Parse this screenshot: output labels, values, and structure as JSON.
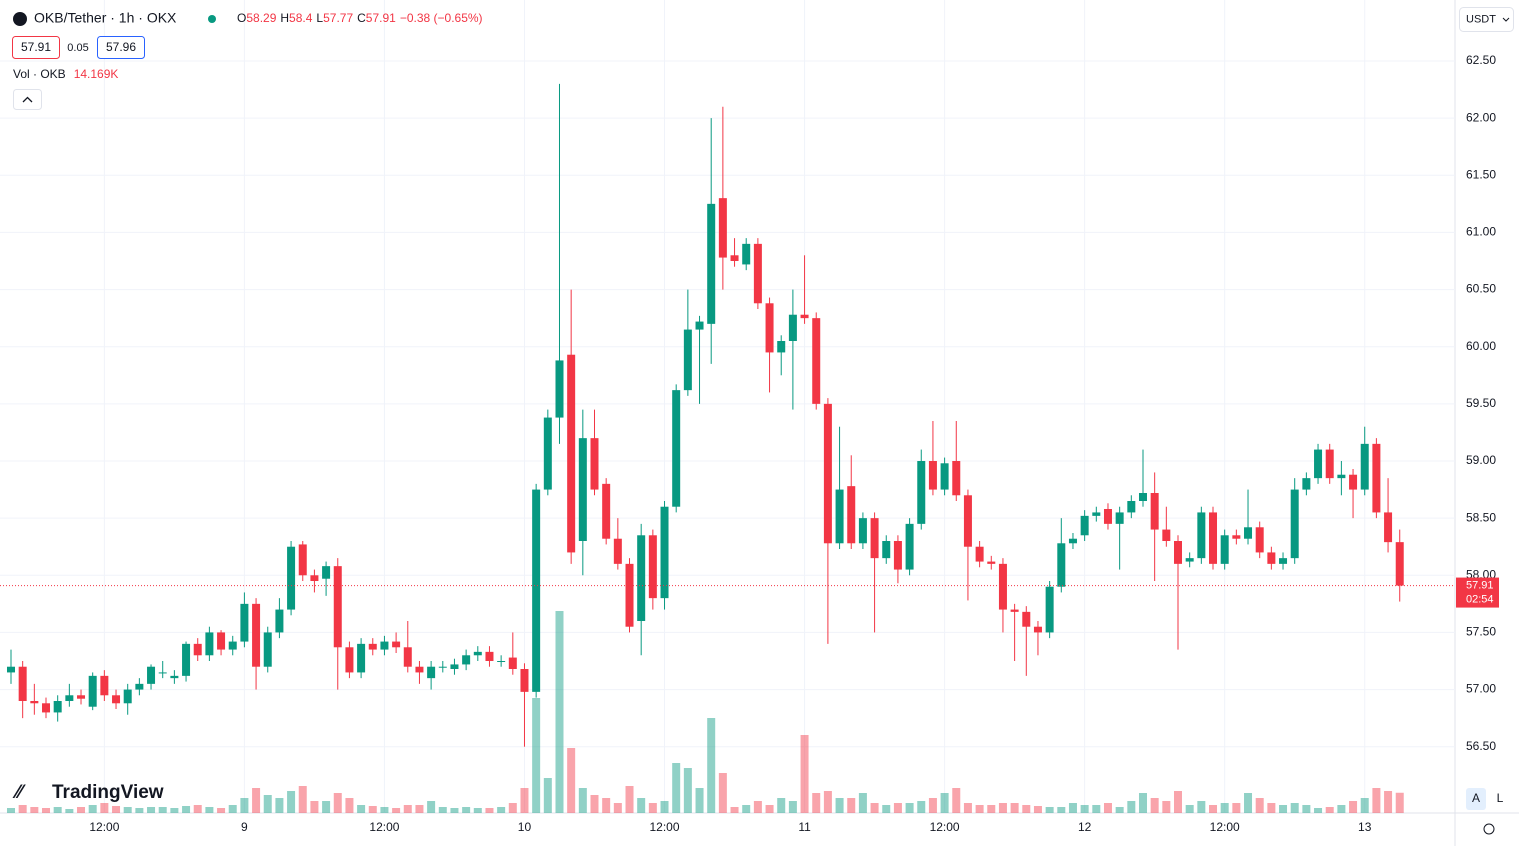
{
  "header": {
    "symbol": "OKB/Tether · 1h · OKX",
    "o": "O",
    "h": "H",
    "l": "L",
    "c": "C",
    "change_label": "−0.38 (−0.65%)",
    "sell": 57.91,
    "spread": 0.05,
    "buy": 57.96,
    "vol_label": "Vol · OKB",
    "vol_value": "14.169K",
    "currency": "USDT",
    "countdown": "02:54",
    "brand": "TradingView",
    "auto": "A",
    "log": "L"
  },
  "chart_data": {
    "type": "candlestick",
    "up_color": "#089981",
    "down_color": "#f23645",
    "grid": true,
    "ylim": [
      55.92,
      62.99
    ],
    "yticks": [
      {
        "value": 56.5,
        "label": "56.50"
      },
      {
        "value": 57,
        "label": "57.00"
      },
      {
        "value": 57.5,
        "label": "57.50"
      },
      {
        "value": 58,
        "label": "58.00"
      },
      {
        "value": 58.5,
        "label": "58.50"
      },
      {
        "value": 59,
        "label": "59.00"
      },
      {
        "value": 59.5,
        "label": "59.50"
      },
      {
        "value": 60,
        "label": "60.00"
      },
      {
        "value": 60.5,
        "label": "60.50"
      },
      {
        "value": 61,
        "label": "61.00"
      },
      {
        "value": 61.5,
        "label": "61.50"
      },
      {
        "value": 62,
        "label": "62.00"
      },
      {
        "value": 62.5,
        "label": "62.50"
      }
    ],
    "xticks": [
      {
        "value": 8,
        "label": "12:00"
      },
      {
        "value": 20,
        "label": "9"
      },
      {
        "value": 32,
        "label": "12:00"
      },
      {
        "value": 44,
        "label": "10"
      },
      {
        "value": 56,
        "label": "12:00"
      },
      {
        "value": 68,
        "label": "11"
      },
      {
        "value": 80,
        "label": "12:00"
      },
      {
        "value": 92,
        "label": "12"
      },
      {
        "value": 104,
        "label": "12:00"
      },
      {
        "value": 116,
        "label": "13"
      }
    ],
    "open": [
      57.15,
      57.2,
      56.9,
      56.88,
      56.8,
      56.9,
      56.95,
      56.85,
      57.12,
      56.95,
      56.88,
      57.0,
      57.05,
      57.15,
      57.1,
      57.12,
      57.4,
      57.3,
      57.5,
      57.35,
      57.42,
      57.75,
      57.2,
      57.5,
      57.7,
      58.27,
      58.0,
      57.97,
      58.08,
      57.37,
      57.15,
      57.4,
      57.35,
      57.42,
      57.37,
      57.2,
      57.1,
      57.2,
      57.18,
      57.22,
      57.3,
      57.33,
      57.25,
      57.28,
      57.18,
      56.98,
      58.75,
      59.38,
      59.93,
      58.3,
      59.2,
      58.8,
      58.32,
      58.1,
      57.6,
      58.35,
      57.8,
      58.6,
      59.62,
      60.15,
      60.2,
      61.3,
      60.8,
      60.72,
      60.9,
      60.38,
      59.95,
      60.05,
      60.28,
      60.25,
      59.5,
      58.28,
      58.78,
      58.28,
      58.5,
      58.15,
      58.3,
      58.05,
      58.45,
      59.0,
      58.75,
      59.0,
      58.7,
      58.25,
      58.12,
      58.1,
      57.7,
      57.68,
      57.55,
      57.5,
      57.9,
      58.28,
      58.35,
      58.52,
      58.58,
      58.45,
      58.55,
      58.65,
      58.72,
      58.4,
      58.3,
      58.12,
      58.15,
      58.55,
      58.1,
      58.35,
      58.32,
      58.42,
      58.2,
      58.1,
      58.15,
      58.75,
      58.85,
      59.1,
      58.85,
      58.88,
      58.75,
      59.15,
      58.55,
      58.29
    ],
    "high": [
      57.35,
      57.25,
      57.05,
      56.93,
      56.95,
      57.05,
      57.0,
      57.15,
      57.17,
      57.0,
      57.05,
      57.1,
      57.22,
      57.25,
      57.17,
      57.42,
      57.45,
      57.55,
      57.52,
      57.47,
      57.85,
      57.8,
      57.55,
      57.8,
      58.3,
      58.3,
      58.05,
      58.12,
      58.15,
      57.42,
      57.45,
      57.45,
      57.47,
      57.5,
      57.6,
      57.25,
      57.25,
      57.25,
      57.27,
      57.35,
      57.38,
      57.38,
      57.3,
      57.5,
      57.23,
      58.8,
      59.45,
      62.3,
      60.5,
      59.45,
      59.45,
      58.85,
      58.5,
      58.15,
      58.45,
      58.4,
      58.65,
      59.67,
      60.5,
      60.27,
      62.0,
      62.1,
      60.95,
      60.95,
      60.95,
      60.43,
      60.1,
      60.5,
      60.8,
      60.3,
      59.55,
      59.3,
      59.05,
      58.55,
      58.55,
      58.35,
      58.35,
      58.5,
      59.1,
      59.35,
      59.03,
      59.35,
      58.75,
      58.3,
      58.17,
      58.15,
      57.75,
      57.73,
      57.6,
      57.95,
      58.5,
      58.37,
      58.57,
      58.6,
      58.63,
      58.6,
      58.7,
      59.1,
      58.9,
      58.6,
      58.35,
      58.2,
      58.6,
      58.6,
      58.4,
      58.4,
      58.75,
      58.47,
      58.25,
      58.2,
      58.85,
      58.9,
      59.15,
      59.15,
      59.0,
      58.93,
      59.3,
      59.2,
      58.85,
      58.4
    ],
    "low": [
      57.05,
      56.75,
      56.78,
      56.75,
      56.72,
      56.85,
      56.87,
      56.82,
      56.9,
      56.83,
      56.78,
      56.95,
      57.0,
      57.1,
      57.05,
      57.07,
      57.25,
      57.25,
      57.3,
      57.3,
      57.37,
      57.0,
      57.15,
      57.45,
      57.65,
      57.95,
      57.85,
      57.82,
      57.0,
      57.1,
      57.1,
      57.3,
      57.3,
      57.32,
      57.15,
      57.05,
      57.0,
      57.15,
      57.13,
      57.17,
      57.25,
      57.2,
      57.2,
      57.13,
      56.5,
      56.93,
      58.7,
      59.15,
      58.1,
      58.0,
      58.7,
      58.27,
      58.05,
      57.5,
      57.3,
      57.7,
      57.7,
      58.55,
      59.57,
      59.5,
      59.85,
      60.5,
      60.7,
      60.67,
      60.33,
      59.6,
      59.75,
      59.45,
      60.2,
      59.45,
      57.4,
      58.23,
      58.23,
      58.23,
      57.5,
      58.1,
      57.93,
      58.0,
      58.4,
      58.7,
      58.7,
      58.65,
      57.78,
      58.07,
      58.05,
      57.5,
      57.25,
      57.12,
      57.3,
      57.45,
      57.85,
      58.23,
      58.3,
      58.47,
      58.4,
      58.05,
      58.5,
      58.6,
      57.95,
      58.25,
      57.35,
      58.07,
      58.1,
      58.05,
      58.05,
      58.27,
      58.27,
      58.15,
      58.05,
      58.05,
      58.1,
      58.7,
      58.8,
      58.8,
      58.7,
      58.5,
      58.7,
      58.5,
      58.2,
      57.77
    ],
    "close": [
      57.2,
      56.9,
      56.88,
      56.8,
      56.9,
      56.95,
      56.92,
      57.12,
      56.95,
      56.88,
      57.0,
      57.05,
      57.2,
      57.15,
      57.12,
      57.4,
      57.3,
      57.5,
      57.35,
      57.42,
      57.75,
      57.2,
      57.5,
      57.7,
      58.25,
      58.0,
      57.95,
      58.08,
      57.37,
      57.15,
      57.4,
      57.35,
      57.42,
      57.37,
      57.2,
      57.15,
      57.2,
      57.2,
      57.22,
      57.3,
      57.33,
      57.25,
      57.25,
      57.18,
      56.98,
      58.75,
      59.38,
      59.88,
      58.2,
      59.2,
      58.75,
      58.32,
      58.1,
      57.55,
      58.35,
      57.8,
      58.6,
      59.62,
      60.15,
      60.22,
      61.25,
      60.78,
      60.75,
      60.9,
      60.38,
      59.95,
      60.05,
      60.28,
      60.25,
      59.5,
      58.28,
      58.75,
      58.28,
      58.5,
      58.15,
      58.3,
      58.05,
      58.45,
      59.0,
      58.75,
      58.98,
      58.7,
      58.25,
      58.12,
      58.1,
      57.7,
      57.68,
      57.55,
      57.5,
      57.9,
      58.28,
      58.32,
      58.52,
      58.55,
      58.45,
      58.55,
      58.65,
      58.72,
      58.4,
      58.3,
      58.1,
      58.15,
      58.55,
      58.1,
      58.35,
      58.32,
      58.42,
      58.2,
      58.1,
      58.15,
      58.75,
      58.85,
      59.1,
      58.85,
      58.88,
      58.75,
      59.15,
      58.55,
      58.29,
      57.91
    ],
    "volume": [
      3.5,
      5.6,
      4.2,
      3.5,
      4.2,
      2.8,
      4.2,
      5.6,
      7,
      4.9,
      4.2,
      3.5,
      4.2,
      4.2,
      3.5,
      4.9,
      5.6,
      4.2,
      3.5,
      5.6,
      10.5,
      17.5,
      12.6,
      10.5,
      15.4,
      18.9,
      8.4,
      8.4,
      14,
      10.5,
      5.6,
      4.9,
      4.2,
      3.5,
      5.6,
      5.6,
      8.4,
      4.2,
      3.5,
      4.2,
      3.5,
      3.5,
      4.2,
      7,
      17.5,
      80.5,
      24.5,
      141.4,
      45.5,
      17.5,
      12.6,
      10.5,
      7,
      18.9,
      10.5,
      7,
      8.4,
      35,
      31.5,
      17.5,
      66.5,
      28,
      4.2,
      5.6,
      8.4,
      5.6,
      10.5,
      8.4,
      54.6,
      14,
      15.4,
      10.5,
      10.5,
      14,
      7,
      5.6,
      7,
      7,
      8.4,
      10.5,
      14,
      17.5,
      7,
      5.6,
      5.6,
      7,
      7,
      5.6,
      4.9,
      4.2,
      4.2,
      7,
      5.6,
      5.6,
      7,
      4.2,
      8.4,
      14,
      10.5,
      8.4,
      15.4,
      5.6,
      8.4,
      5.6,
      7,
      7,
      14,
      10.5,
      7,
      5.6,
      7,
      5.6,
      3.5,
      4.2,
      5.6,
      8.4,
      10.5,
      17.5,
      15.4,
      14.169
    ]
  }
}
